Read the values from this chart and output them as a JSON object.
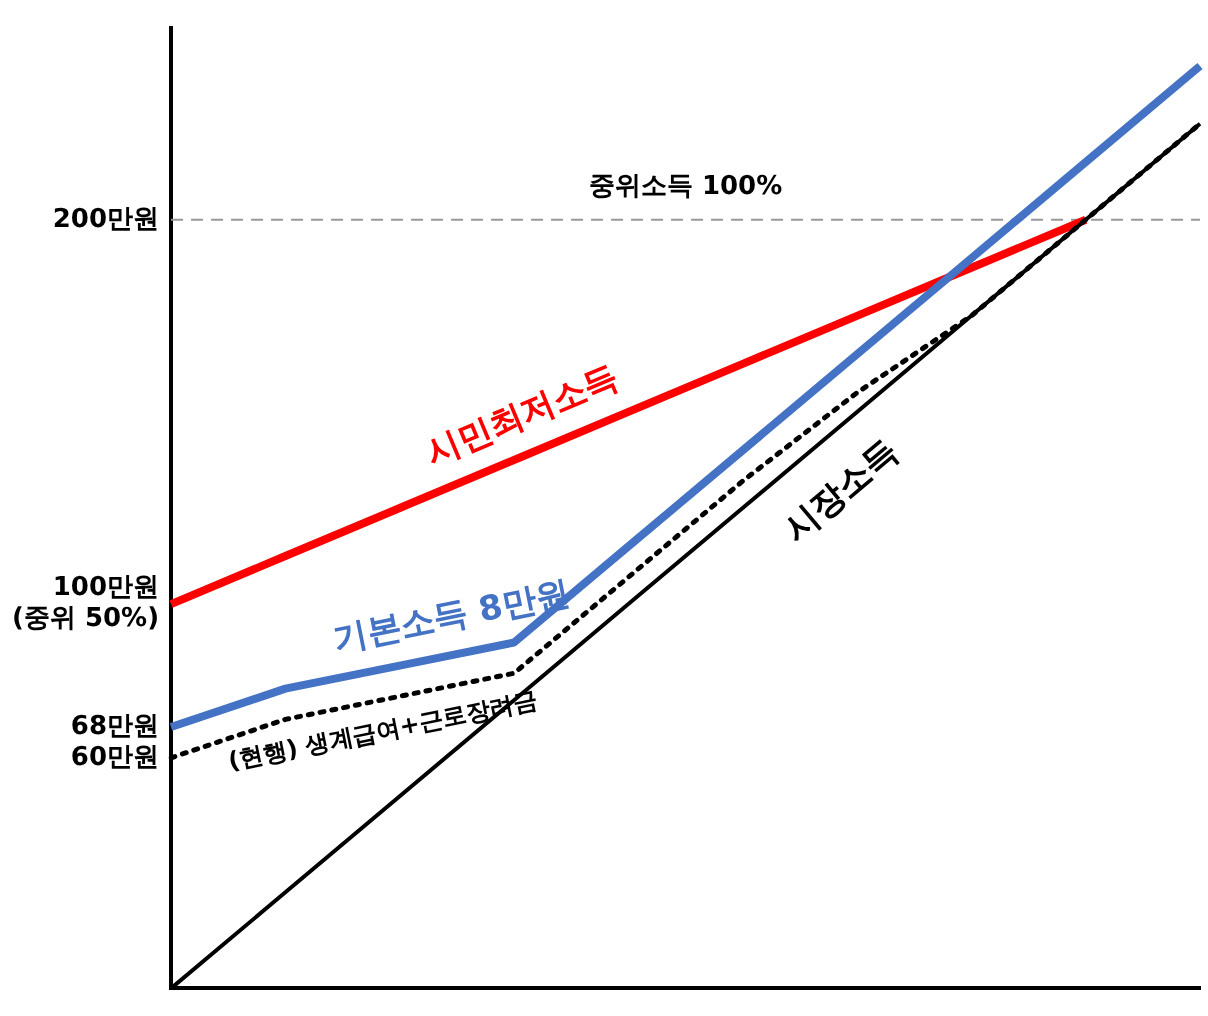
{
  "chart_data": {
    "type": "line",
    "categories": [
      null,
      null,
      null,
      null,
      null,
      null,
      null,
      null,
      null,
      null
    ],
    "ylim": [
      0,
      250
    ],
    "yticks": [
      {
        "value": 60,
        "label": "60만원"
      },
      {
        "value": 68,
        "label": "68만원"
      },
      {
        "value": 100,
        "label": "100만원\n(중위 50%)"
      },
      {
        "value": 200,
        "label": "200만원"
      }
    ],
    "tick_labels": "y",
    "grid": false,
    "legend": false,
    "marker": "none",
    "ref_lines": [
      {
        "axis": "y",
        "value": 200,
        "label": "중위소득 100%",
        "color": "#999999",
        "line_style": "dashed"
      }
    ],
    "series": [
      {
        "name": "시장소득",
        "color": "#000000",
        "values": [
          0,
          25,
          50,
          75,
          100,
          125,
          150,
          175,
          200,
          225
        ],
        "line_style": "solid"
      },
      {
        "name": "(현행) 생계급여+근로장려금",
        "color": "#000000",
        "values": [
          60,
          70,
          76,
          82,
          107,
          132,
          155,
          175,
          200,
          225
        ],
        "line_style": "dotted"
      },
      {
        "name": "기본소득 8만원",
        "color": "#4472c4",
        "values": [
          68,
          78,
          84,
          90,
          115,
          140,
          165,
          190,
          215,
          240
        ],
        "line_style": "solid"
      },
      {
        "name": "시민최저소득",
        "color": "#ff0000",
        "values": [
          100,
          112.5,
          125,
          137.5,
          150,
          162.5,
          175,
          187.5,
          200,
          null
        ],
        "line_style": "solid"
      }
    ]
  }
}
